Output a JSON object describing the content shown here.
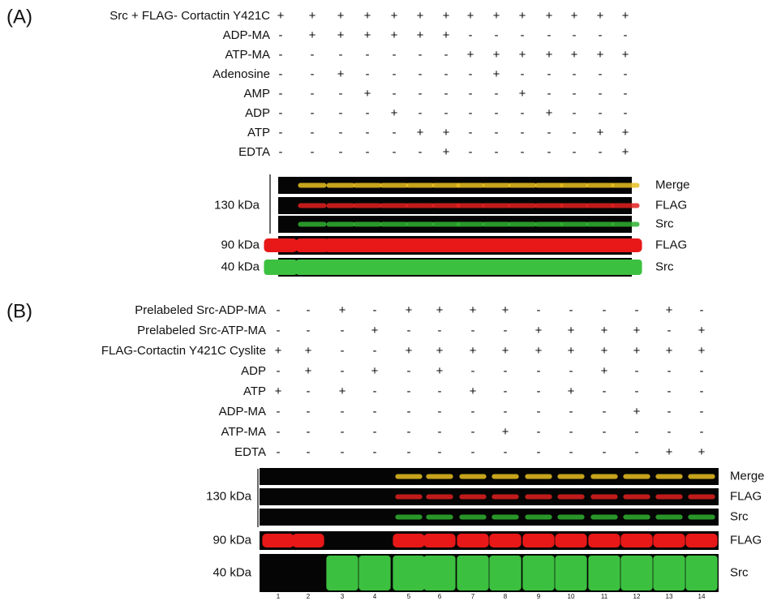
{
  "panel_a": {
    "label": "(A)",
    "rows": [
      {
        "label": "Src + FLAG- Cortactin Y421C",
        "signs": [
          "+",
          "+",
          "+",
          "+",
          "+",
          "+",
          "+",
          "+",
          "+",
          "+",
          "+",
          "+",
          "+",
          "+"
        ]
      },
      {
        "label": "ADP-MA",
        "signs": [
          "-",
          "+",
          "+",
          "+",
          "+",
          "+",
          "+",
          "-",
          "-",
          "-",
          "-",
          "-",
          "-",
          "-"
        ]
      },
      {
        "label": "ATP-MA",
        "signs": [
          "-",
          "-",
          "-",
          "-",
          "-",
          "-",
          "-",
          "+",
          "+",
          "+",
          "+",
          "+",
          "+",
          "+"
        ]
      },
      {
        "label": "Adenosine",
        "signs": [
          "-",
          "-",
          "+",
          "-",
          "-",
          "-",
          "-",
          "-",
          "+",
          "-",
          "-",
          "-",
          "-",
          "-"
        ]
      },
      {
        "label": "AMP",
        "signs": [
          "-",
          "-",
          "-",
          "+",
          "-",
          "-",
          "-",
          "-",
          "-",
          "+",
          "-",
          "-",
          "-",
          "-"
        ]
      },
      {
        "label": "ADP",
        "signs": [
          "-",
          "-",
          "-",
          "-",
          "+",
          "-",
          "-",
          "-",
          "-",
          "-",
          "+",
          "-",
          "-",
          "-"
        ]
      },
      {
        "label": "ATP",
        "signs": [
          "-",
          "-",
          "-",
          "-",
          "-",
          "+",
          "+",
          "-",
          "-",
          "-",
          "-",
          "-",
          "+",
          "+"
        ]
      },
      {
        "label": "EDTA",
        "signs": [
          "-",
          "-",
          "-",
          "-",
          "-",
          "-",
          "+",
          "-",
          "-",
          "-",
          "-",
          "-",
          "-",
          "+"
        ]
      }
    ],
    "blots": {
      "kda_130": "130 kDa",
      "channels_130": [
        "Merge",
        "FLAG",
        "Src"
      ],
      "kda_90": "90 kDa",
      "label_90": "FLAG",
      "kda_40": "40 kDa",
      "label_40": "Src"
    }
  },
  "panel_b": {
    "label": "(B)",
    "rows": [
      {
        "label": "Prelabeled Src-ADP-MA",
        "signs": [
          "-",
          "-",
          "+",
          "-",
          "+",
          "+",
          "+",
          "+",
          "-",
          "-",
          "-",
          "-",
          "+",
          "-"
        ]
      },
      {
        "label": "Prelabeled Src-ATP-MA",
        "signs": [
          "-",
          "-",
          "-",
          "+",
          "-",
          "-",
          "-",
          "-",
          "+",
          "+",
          "+",
          "+",
          "-",
          "+"
        ]
      },
      {
        "label": "FLAG-Cortactin Y421C Cyslite",
        "signs": [
          "+",
          "+",
          "-",
          "-",
          "+",
          "+",
          "+",
          "+",
          "+",
          "+",
          "+",
          "+",
          "+",
          "+"
        ]
      },
      {
        "label": "ADP",
        "signs": [
          "-",
          "+",
          "-",
          "+",
          "-",
          "+",
          "-",
          "-",
          "-",
          "-",
          "+",
          "-",
          "-",
          "-"
        ]
      },
      {
        "label": "ATP",
        "signs": [
          "+",
          "-",
          "+",
          "-",
          "-",
          "-",
          "+",
          "-",
          "-",
          "+",
          "-",
          "-",
          "-",
          "-"
        ]
      },
      {
        "label": "ADP-MA",
        "signs": [
          "-",
          "-",
          "-",
          "-",
          "-",
          "-",
          "-",
          "-",
          "-",
          "-",
          "-",
          "+",
          "-",
          "-"
        ]
      },
      {
        "label": "ATP-MA",
        "signs": [
          "-",
          "-",
          "-",
          "-",
          "-",
          "-",
          "-",
          "+",
          "-",
          "-",
          "-",
          "-",
          "-",
          "-"
        ]
      },
      {
        "label": "EDTA",
        "signs": [
          "-",
          "-",
          "-",
          "-",
          "-",
          "-",
          "-",
          "-",
          "-",
          "-",
          "-",
          "-",
          "+",
          "+"
        ]
      }
    ],
    "blots": {
      "kda_130": "130 kDa",
      "channels_130": [
        "Merge",
        "FLAG",
        "Src"
      ],
      "kda_90": "90 kDa",
      "label_90": "FLAG",
      "kda_40": "40 kDa",
      "label_40": "Src"
    },
    "lane_numbers": [
      1,
      2,
      3,
      4,
      5,
      6,
      7,
      8,
      9,
      10,
      11,
      12,
      13,
      14
    ]
  }
}
